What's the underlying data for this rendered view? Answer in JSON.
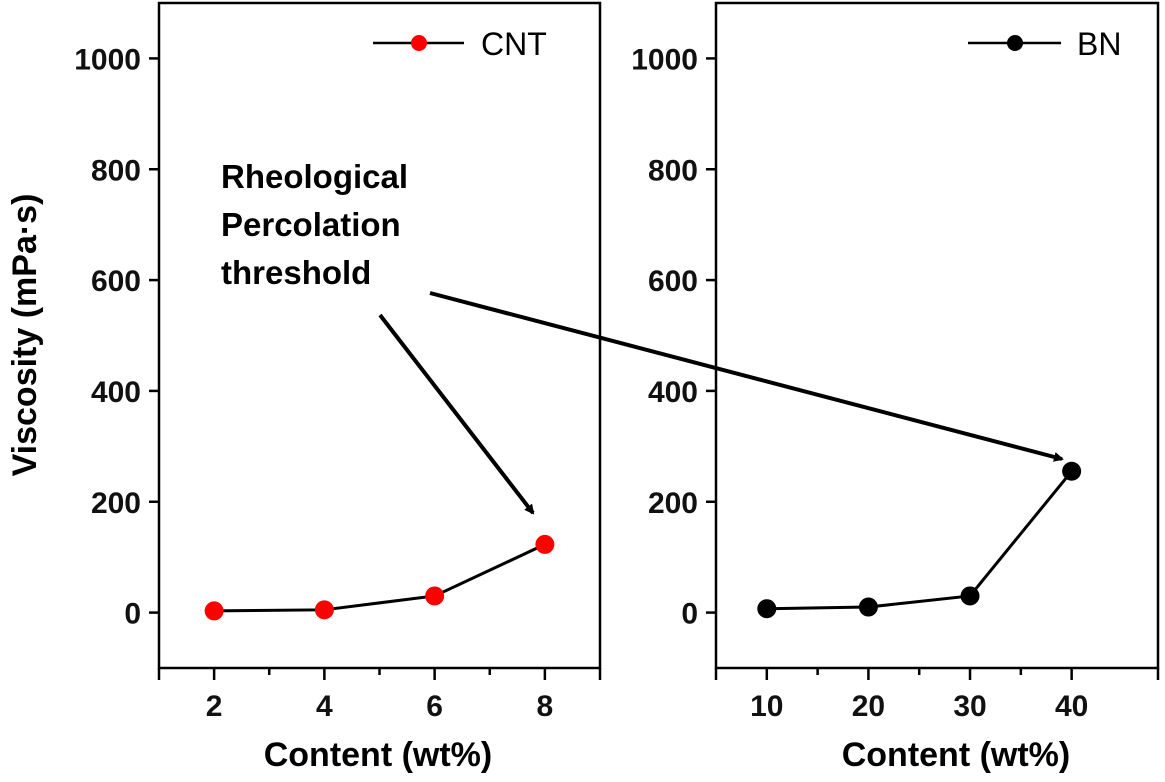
{
  "chart_data": [
    {
      "type": "line",
      "panel": "left",
      "title": "",
      "xlabel": "Content (wt%)",
      "ylabel": "Viscosity (mPa·s)",
      "xlim": [
        1,
        9
      ],
      "ylim": [
        -100,
        1100
      ],
      "xticks": [
        2,
        4,
        6,
        8
      ],
      "xminor": [
        3,
        5,
        7
      ],
      "yticks": [
        0,
        200,
        400,
        600,
        800,
        1000
      ],
      "grid": false,
      "legend": {
        "placement": "top-right",
        "entries": [
          "CNT"
        ]
      },
      "series": [
        {
          "name": "CNT",
          "color": "#ff0000",
          "line_color": "#000000",
          "x": [
            2,
            4,
            6,
            8
          ],
          "y": [
            3,
            5,
            30,
            123
          ]
        }
      ]
    },
    {
      "type": "line",
      "panel": "right",
      "title": "",
      "xlabel": "Content (wt%)",
      "ylabel": "",
      "xlim": [
        5,
        48.5
      ],
      "ylim": [
        -100,
        1100
      ],
      "xticks": [
        10,
        20,
        30,
        40
      ],
      "xminor": [
        15,
        25,
        35
      ],
      "yticks": [
        0,
        200,
        400,
        600,
        800,
        1000
      ],
      "grid": false,
      "legend": {
        "placement": "top-right",
        "entries": [
          "BN"
        ]
      },
      "series": [
        {
          "name": "BN",
          "color": "#000000",
          "line_color": "#000000",
          "x": [
            10,
            20,
            30,
            40
          ],
          "y": [
            7,
            10,
            30,
            255
          ]
        }
      ]
    }
  ],
  "annotation": {
    "lines": [
      "Rheological",
      "Percolation",
      "threshold"
    ],
    "arrows_point_to": [
      {
        "panel": "left",
        "series": "CNT",
        "x": 8
      },
      {
        "panel": "right",
        "series": "BN",
        "x": 40
      }
    ]
  }
}
